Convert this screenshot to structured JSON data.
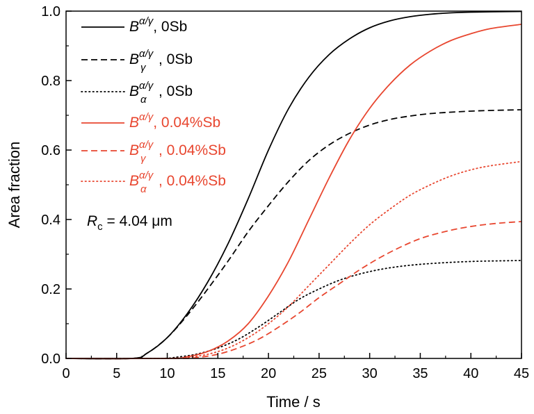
{
  "chart_data": {
    "type": "line",
    "xlabel": "Time / s",
    "ylabel": "Area fraction",
    "xlim": [
      0,
      45
    ],
    "ylim": [
      0,
      1.0
    ],
    "xticks": [
      "0",
      "5",
      "10",
      "15",
      "20",
      "25",
      "30",
      "35",
      "40",
      "45"
    ],
    "yticks": [
      "0.0",
      "0.2",
      "0.4",
      "0.6",
      "0.8",
      "1.0"
    ],
    "grid": false,
    "legend_position": "top-left",
    "annotation": {
      "symbol": "R",
      "subscript": "c",
      "text": " = 4.04 μm"
    },
    "series": [
      {
        "name_symbol": "B",
        "name_sup": "α/γ",
        "name_sub": "",
        "name_suffix": ", 0Sb",
        "color": "#000000",
        "dash": "solid",
        "x": [
          0,
          6.5,
          8,
          10,
          12,
          14,
          16,
          18,
          20,
          22,
          24,
          26,
          28,
          30,
          32,
          34,
          36,
          38,
          40,
          42,
          45
        ],
        "y": [
          0,
          0,
          0.015,
          0.06,
          0.13,
          0.22,
          0.33,
          0.46,
          0.6,
          0.72,
          0.81,
          0.875,
          0.92,
          0.952,
          0.972,
          0.984,
          0.991,
          0.995,
          0.997,
          0.998,
          0.999
        ]
      },
      {
        "name_symbol": "B",
        "name_sup": "α/γ",
        "name_sub": "γ",
        "name_suffix": ", 0Sb",
        "color": "#000000",
        "dash": "dashed",
        "x": [
          0,
          6.5,
          8,
          10,
          12,
          14,
          16,
          18,
          20,
          22,
          24,
          26,
          28,
          30,
          32,
          34,
          36,
          38,
          40,
          42,
          45
        ],
        "y": [
          0,
          0,
          0.015,
          0.06,
          0.125,
          0.2,
          0.28,
          0.365,
          0.44,
          0.51,
          0.57,
          0.615,
          0.648,
          0.672,
          0.688,
          0.698,
          0.705,
          0.709,
          0.712,
          0.714,
          0.716
        ]
      },
      {
        "name_symbol": "B",
        "name_sup": "α/γ",
        "name_sub": "α",
        "name_suffix": ", 0Sb",
        "color": "#000000",
        "dash": "dotted",
        "x": [
          0,
          9,
          11,
          13,
          15,
          17,
          19,
          21,
          23,
          25,
          27,
          29,
          31,
          33,
          35,
          37,
          39,
          41,
          43,
          45
        ],
        "y": [
          0,
          0,
          0.004,
          0.013,
          0.03,
          0.055,
          0.09,
          0.13,
          0.17,
          0.2,
          0.225,
          0.243,
          0.256,
          0.265,
          0.271,
          0.275,
          0.278,
          0.28,
          0.281,
          0.282
        ]
      },
      {
        "name_symbol": "B",
        "name_sup": "α/γ",
        "name_sub": "",
        "name_suffix": ", 0.04%Sb",
        "color": "#e8462f",
        "dash": "solid",
        "x": [
          0,
          10,
          12,
          14,
          16,
          18,
          20,
          22,
          24,
          26,
          28,
          30,
          32,
          34,
          36,
          38,
          40,
          42,
          45
        ],
        "y": [
          0,
          0,
          0.005,
          0.02,
          0.05,
          0.1,
          0.18,
          0.28,
          0.4,
          0.52,
          0.63,
          0.72,
          0.79,
          0.845,
          0.885,
          0.915,
          0.935,
          0.95,
          0.962
        ]
      },
      {
        "name_symbol": "B",
        "name_sup": "α/γ",
        "name_sub": "γ",
        "name_suffix": ", 0.04%Sb",
        "color": "#e8462f",
        "dash": "dashed",
        "x": [
          0,
          11,
          13,
          15,
          17,
          19,
          21,
          23,
          25,
          27,
          29,
          31,
          33,
          35,
          37,
          39,
          41,
          43,
          45
        ],
        "y": [
          0,
          0,
          0.003,
          0.012,
          0.03,
          0.055,
          0.09,
          0.13,
          0.175,
          0.215,
          0.255,
          0.29,
          0.32,
          0.345,
          0.362,
          0.375,
          0.384,
          0.39,
          0.394
        ]
      },
      {
        "name_symbol": "B",
        "name_sup": "α/γ",
        "name_sub": "α",
        "name_suffix": ", 0.04%Sb",
        "color": "#e8462f",
        "dash": "dotted",
        "x": [
          0,
          10,
          12,
          14,
          16,
          18,
          20,
          22,
          24,
          26,
          28,
          30,
          32,
          34,
          36,
          38,
          40,
          42,
          45
        ],
        "y": [
          0,
          0,
          0.003,
          0.012,
          0.03,
          0.06,
          0.1,
          0.15,
          0.21,
          0.27,
          0.33,
          0.385,
          0.43,
          0.47,
          0.5,
          0.525,
          0.543,
          0.555,
          0.567
        ]
      }
    ]
  }
}
